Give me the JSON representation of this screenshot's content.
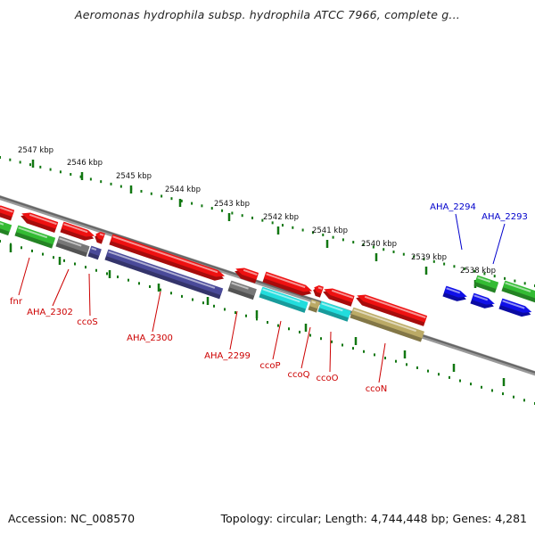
{
  "title": "Aeromonas hydrophila subsp. hydrophila ATCC 7966, complete g...",
  "footer": {
    "accession": "Accession: NC_008570",
    "topology": "Topology: circular; Length: 4,744,448 bp; Genes: 4,281"
  },
  "colors": {
    "red": "#ee1111",
    "green": "#33bb33",
    "blue": "#1010e8",
    "gray": "#777777",
    "navy": "#4a4a99",
    "cyan": "#22dddd",
    "tan": "#bbaa66",
    "label_red": "#cc0000",
    "label_blue": "#0000cc",
    "scale_green": "#117711"
  },
  "scale": {
    "tick_labels": [
      "2547 kbp",
      "2546 kbp",
      "2545 kbp",
      "2544 kbp",
      "2543 kbp",
      "2542 kbp",
      "2541 kbp",
      "2540 kbp",
      "2539 kbp",
      "2538 kbp"
    ]
  },
  "genes": [
    {
      "name": "fnr",
      "color": "label_red"
    },
    {
      "name": "AHA_2302",
      "color": "label_red"
    },
    {
      "name": "ccoS",
      "color": "label_red"
    },
    {
      "name": "AHA_2300",
      "color": "label_red"
    },
    {
      "name": "AHA_2299",
      "color": "label_red"
    },
    {
      "name": "ccoP",
      "color": "label_red"
    },
    {
      "name": "ccoQ",
      "color": "label_red"
    },
    {
      "name": "ccoO",
      "color": "label_red"
    },
    {
      "name": "ccoN",
      "color": "label_red"
    },
    {
      "name": "AHA_2294",
      "color": "label_blue"
    },
    {
      "name": "AHA_2293",
      "color": "label_blue"
    }
  ]
}
